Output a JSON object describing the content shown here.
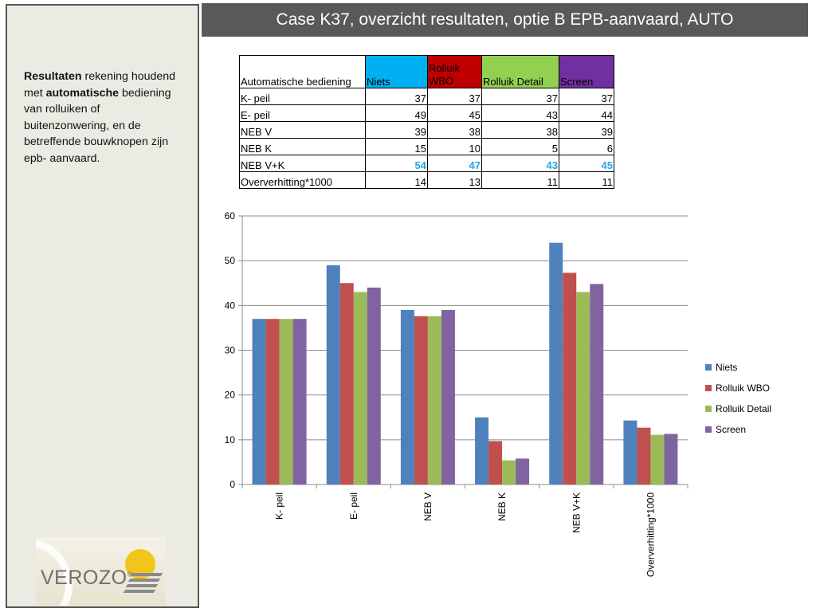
{
  "header": {
    "title": "Case K37, overzicht resultaten, optie B EPB-aanvaard, AUTO"
  },
  "sidebar": {
    "bold1": "Resultaten",
    "text1": " rekening houdend met ",
    "bold2": "automatische",
    "text2": " bediening van  rolluiken of buitenzonwering, en de betreffende bouwknopen zijn epb- aanvaard."
  },
  "logo": {
    "text": "VEROZO",
    "mark": "®"
  },
  "colors": {
    "Niets": "#4f81bd",
    "Rolluik WBO": "#c0504d",
    "Rolluik Detail": "#9bbb59",
    "Screen": "#8064a2",
    "header_niets": "#00b0f0",
    "header_wbo": "#c00000",
    "header_detail": "#92d050",
    "header_screen": "#7030a0",
    "highlight": "#1fa8e6"
  },
  "table": {
    "corner": "Automatische bediening",
    "headers": [
      "Niets",
      "Rolluik WBO",
      "Rolluik Detail",
      "Screen"
    ],
    "rows": [
      {
        "label": "K- peil",
        "values": [
          "37",
          "37",
          "37",
          "37"
        ]
      },
      {
        "label": "E- peil",
        "values": [
          "49",
          "45",
          "43",
          "44"
        ]
      },
      {
        "label": "NEB V",
        "values": [
          "39",
          "38",
          "38",
          "39"
        ]
      },
      {
        "label": "NEB K",
        "values": [
          "15",
          "10",
          "5",
          "6"
        ]
      },
      {
        "label": "NEB V+K",
        "values": [
          "54",
          "47",
          "43",
          "45"
        ]
      },
      {
        "label": "Oververhitting*1000",
        "values": [
          "14",
          "13",
          "11",
          "11"
        ]
      }
    ]
  },
  "chart_data": {
    "type": "bar",
    "categories": [
      "K- peil",
      "E- peil",
      "NEB V",
      "NEB K",
      "NEB V+K",
      "Oververhitting*1000"
    ],
    "series": [
      {
        "name": "Niets",
        "values": [
          37,
          49,
          39,
          15,
          54,
          14.3
        ]
      },
      {
        "name": "Rolluik WBO",
        "values": [
          37,
          45,
          37.6,
          9.7,
          47.3,
          12.7
        ]
      },
      {
        "name": "Rolluik Detail",
        "values": [
          37,
          43,
          37.6,
          5.4,
          43,
          11.1
        ]
      },
      {
        "name": "Screen",
        "values": [
          37,
          44,
          39,
          5.8,
          44.8,
          11.3
        ]
      }
    ],
    "ylim": [
      0,
      60
    ],
    "yticks": [
      0,
      10,
      20,
      30,
      40,
      50,
      60
    ],
    "grid": true,
    "legend": "right"
  }
}
